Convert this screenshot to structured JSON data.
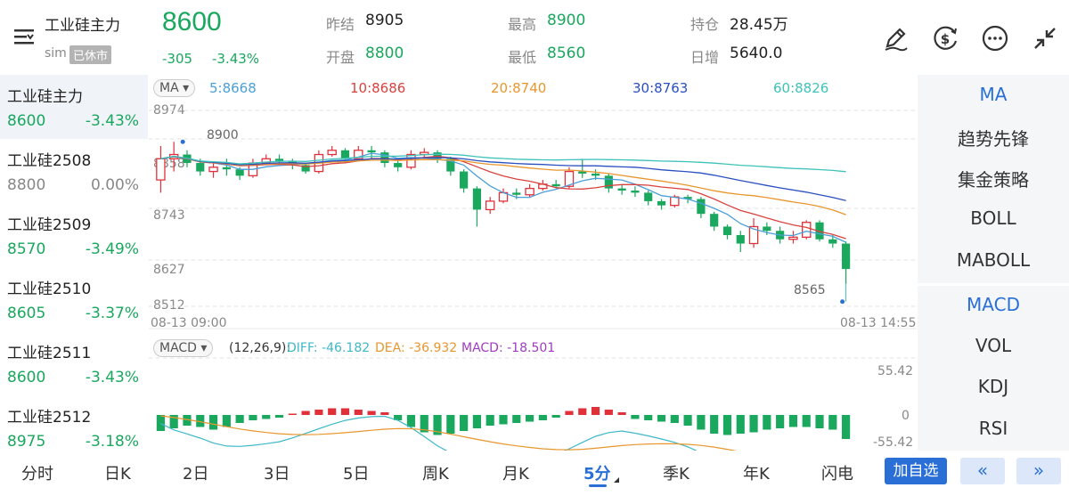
{
  "header": {
    "title": "工业硅主力",
    "sim": "sim",
    "status": "已休市",
    "price": "8600",
    "change": "-305",
    "change_pct": "-3.43%",
    "stats": [
      {
        "label": "昨结",
        "value": "8905",
        "color": "#222222"
      },
      {
        "label": "开盘",
        "value": "8800",
        "color": "#1aa75e"
      },
      {
        "label": "最高",
        "value": "8900",
        "color": "#1aa75e"
      },
      {
        "label": "最低",
        "value": "8560",
        "color": "#1aa75e"
      },
      {
        "label": "持仓",
        "value": "28.45万",
        "color": "#222222"
      },
      {
        "label": "日增",
        "value": "5640.0",
        "color": "#222222"
      }
    ]
  },
  "contracts": [
    {
      "name": "工业硅主力",
      "price": "8600",
      "pct": "-3.43%",
      "color": "#1aa75e"
    },
    {
      "name": "工业硅2508",
      "price": "8800",
      "pct": "0.00%",
      "color": "#888888"
    },
    {
      "name": "工业硅2509",
      "price": "8570",
      "pct": "-3.49%",
      "color": "#1aa75e"
    },
    {
      "name": "工业硅2510",
      "price": "8605",
      "pct": "-3.37%",
      "color": "#1aa75e"
    },
    {
      "name": "工业硅2511",
      "price": "8600",
      "pct": "-3.43%",
      "color": "#1aa75e"
    },
    {
      "name": "工业硅2512",
      "price": "8975",
      "pct": "-3.18%",
      "color": "#1aa75e"
    }
  ],
  "ma": {
    "badge": "MA ▾",
    "items": [
      {
        "label": "5:8668",
        "color": "#4a9fd8"
      },
      {
        "label": "10:8686",
        "color": "#d9423f"
      },
      {
        "label": "20:8740",
        "color": "#e8962e"
      },
      {
        "label": "30:8763",
        "color": "#2a4fbf"
      },
      {
        "label": "60:8826",
        "color": "#3fc2b8"
      }
    ]
  },
  "price_axis": [
    "8974",
    "8858",
    "8743",
    "8627",
    "8512"
  ],
  "price_markers": {
    "high": "8900",
    "low": "8565"
  },
  "time_axis": {
    "start": "08-13 09:00",
    "end": "08-13 14:55"
  },
  "macd": {
    "badge": "MACD ▾",
    "params": "(12,26,9):",
    "diff": "DIFF: -46.182",
    "dea": "DEA: -36.932",
    "macd": "MACD: -18.501",
    "axis": [
      "55.42",
      "0",
      "-55.42"
    ]
  },
  "indicators": [
    {
      "label": "MA",
      "active": true
    },
    {
      "label": "趋势先锋",
      "active": false
    },
    {
      "label": "集金策略",
      "active": false
    },
    {
      "label": "BOLL",
      "active": false
    },
    {
      "label": "MABOLL",
      "active": false
    },
    {
      "label": "MACD",
      "active": true
    },
    {
      "label": "VOL",
      "active": false
    },
    {
      "label": "KDJ",
      "active": false
    },
    {
      "label": "RSI",
      "active": false
    }
  ],
  "tabs": [
    "分时",
    "日K",
    "2日",
    "3日",
    "5日",
    "周K",
    "月K",
    "5分",
    "季K",
    "年K",
    "闪电"
  ],
  "active_tab": "5分",
  "add_watch": "加自选",
  "prev": "«",
  "next": "»",
  "colors": {
    "up": "#e0313a",
    "down": "#1aa75e",
    "accent": "#2a6fd6"
  },
  "chart_data": {
    "type": "candlestick",
    "interval": "5min",
    "candles": [
      [
        8810,
        8860,
        8890,
        8780
      ],
      [
        8860,
        8870,
        8900,
        8830
      ],
      [
        8870,
        8850,
        8880,
        8840
      ],
      [
        8850,
        8830,
        8860,
        8820
      ],
      [
        8830,
        8840,
        8850,
        8815
      ],
      [
        8840,
        8835,
        8860,
        8820
      ],
      [
        8835,
        8820,
        8840,
        8810
      ],
      [
        8820,
        8850,
        8860,
        8815
      ],
      [
        8850,
        8860,
        8870,
        8845
      ],
      [
        8860,
        8855,
        8870,
        8845
      ],
      [
        8855,
        8845,
        8860,
        8835
      ],
      [
        8845,
        8830,
        8850,
        8825
      ],
      [
        8830,
        8870,
        8880,
        8825
      ],
      [
        8870,
        8880,
        8890,
        8865
      ],
      [
        8880,
        8860,
        8885,
        8850
      ],
      [
        8860,
        8880,
        8890,
        8855
      ],
      [
        8880,
        8875,
        8890,
        8860
      ],
      [
        8875,
        8850,
        8880,
        8840
      ],
      [
        8850,
        8840,
        8855,
        8830
      ],
      [
        8840,
        8870,
        8880,
        8835
      ],
      [
        8870,
        8875,
        8885,
        8860
      ],
      [
        8875,
        8860,
        8880,
        8850
      ],
      [
        8860,
        8830,
        8865,
        8820
      ],
      [
        8830,
        8790,
        8835,
        8780
      ],
      [
        8790,
        8740,
        8795,
        8700
      ],
      [
        8740,
        8760,
        8770,
        8730
      ],
      [
        8760,
        8780,
        8790,
        8755
      ],
      [
        8780,
        8775,
        8790,
        8765
      ],
      [
        8775,
        8790,
        8800,
        8770
      ],
      [
        8790,
        8800,
        8810,
        8785
      ],
      [
        8800,
        8795,
        8810,
        8790
      ],
      [
        8795,
        8830,
        8840,
        8790
      ],
      [
        8830,
        8825,
        8860,
        8815
      ],
      [
        8825,
        8820,
        8835,
        8810
      ],
      [
        8820,
        8790,
        8825,
        8780
      ],
      [
        8790,
        8785,
        8800,
        8775
      ],
      [
        8785,
        8780,
        8795,
        8770
      ],
      [
        8780,
        8760,
        8785,
        8750
      ],
      [
        8760,
        8750,
        8765,
        8740
      ],
      [
        8750,
        8770,
        8775,
        8745
      ],
      [
        8770,
        8765,
        8775,
        8755
      ],
      [
        8765,
        8730,
        8770,
        8720
      ],
      [
        8730,
        8700,
        8735,
        8690
      ],
      [
        8700,
        8680,
        8705,
        8670
      ],
      [
        8680,
        8660,
        8690,
        8640
      ],
      [
        8660,
        8700,
        8720,
        8650
      ],
      [
        8700,
        8690,
        8710,
        8680
      ],
      [
        8690,
        8670,
        8700,
        8660
      ],
      [
        8670,
        8675,
        8690,
        8660
      ],
      [
        8675,
        8710,
        8715,
        8670
      ],
      [
        8710,
        8670,
        8715,
        8665
      ],
      [
        8670,
        8660,
        8680,
        8650
      ],
      [
        8660,
        8600,
        8665,
        8565
      ]
    ],
    "macd_hist": [
      -12,
      -10,
      -8,
      -9,
      -11,
      -9,
      -6,
      -4,
      -3,
      -2,
      1,
      3,
      4,
      5,
      5,
      4,
      3,
      2,
      -4,
      -9,
      -13,
      -15,
      -14,
      -12,
      -10,
      -8,
      -7,
      -6,
      -5,
      -4,
      -2,
      3,
      5,
      6,
      4,
      2,
      -3,
      -4,
      -5,
      -6,
      -8,
      -11,
      -14,
      -15,
      -14,
      -13,
      -11,
      -10,
      -9,
      -9,
      -10,
      -11,
      -18
    ]
  }
}
